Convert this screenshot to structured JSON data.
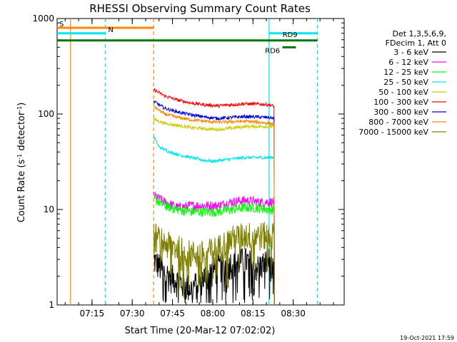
{
  "chart_data": {
    "type": "line",
    "title": "RHESSI Observing Summary Count Rates",
    "xlabel": "Start Time (20-Mar-12 07:02:02)",
    "ylabel_main": "Count Rate (s",
    "ylabel_sup1": "-1",
    "ylabel_mid": " detector",
    "ylabel_sup2": "-1",
    "ylabel_end": ")",
    "yscale": "log",
    "ylim": [
      1,
      1000
    ],
    "xlim_minutes": [
      0,
      107
    ],
    "x_ticks": [
      "07:15",
      "07:30",
      "07:45",
      "08:00",
      "08:15",
      "08:30"
    ],
    "x_tick_minutes": [
      13,
      28,
      43,
      58,
      73,
      88
    ],
    "y_ticks": [
      "1",
      "10",
      "100",
      "1000"
    ],
    "y_tick_values": [
      1,
      10,
      100,
      1000
    ],
    "legend_header": [
      "Det 1,3,5,6,9,",
      "FDecim 1, Att 0"
    ],
    "legend_position": "right",
    "footer_date": "19-Oct-2021 17:59",
    "series": [
      {
        "name": "3 - 6 keV",
        "color": "#000000",
        "start": 36,
        "end": 81,
        "points": [
          [
            36,
            3.0
          ],
          [
            40,
            2.2
          ],
          [
            45,
            1.8
          ],
          [
            50,
            1.5
          ],
          [
            55,
            2.0
          ],
          [
            60,
            2.5
          ],
          [
            65,
            2.8
          ],
          [
            70,
            3.0
          ],
          [
            75,
            2.5
          ],
          [
            79,
            3.0
          ],
          [
            81,
            2.0
          ]
        ]
      },
      {
        "name": "6 - 12 keV",
        "color": "#ff00ff",
        "start": 36,
        "end": 81,
        "points": [
          [
            36,
            14
          ],
          [
            40,
            12
          ],
          [
            45,
            10.5
          ],
          [
            50,
            11
          ],
          [
            55,
            11
          ],
          [
            60,
            11
          ],
          [
            65,
            12
          ],
          [
            70,
            12.5
          ],
          [
            75,
            12
          ],
          [
            79,
            12
          ],
          [
            81,
            12
          ]
        ]
      },
      {
        "name": "12 - 25 keV",
        "color": "#00ff00",
        "start": 36,
        "end": 81,
        "points": [
          [
            36,
            13
          ],
          [
            40,
            11
          ],
          [
            45,
            10
          ],
          [
            50,
            9.5
          ],
          [
            55,
            9.5
          ],
          [
            60,
            9.5
          ],
          [
            65,
            10
          ],
          [
            70,
            10.5
          ],
          [
            75,
            10.5
          ],
          [
            79,
            10
          ],
          [
            81,
            10
          ]
        ]
      },
      {
        "name": "25 - 50 keV",
        "color": "#00e5ee",
        "start": 36,
        "end": 81,
        "points": [
          [
            36,
            58
          ],
          [
            38,
            45
          ],
          [
            42,
            40
          ],
          [
            46,
            37
          ],
          [
            50,
            35
          ],
          [
            54,
            33
          ],
          [
            58,
            32
          ],
          [
            62,
            33
          ],
          [
            66,
            34
          ],
          [
            70,
            35
          ],
          [
            75,
            35
          ],
          [
            79,
            35
          ],
          [
            81,
            35
          ]
        ]
      },
      {
        "name": "50 - 100 keV",
        "color": "#cccc00",
        "start": 36,
        "end": 81,
        "points": [
          [
            36,
            88
          ],
          [
            40,
            80
          ],
          [
            45,
            76
          ],
          [
            50,
            72
          ],
          [
            55,
            70
          ],
          [
            60,
            69
          ],
          [
            65,
            71
          ],
          [
            70,
            74
          ],
          [
            75,
            74
          ],
          [
            79,
            74
          ],
          [
            81,
            74
          ]
        ]
      },
      {
        "name": "100 - 300 keV",
        "color": "#ff0000",
        "start": 36,
        "end": 81,
        "points": [
          [
            36,
            180
          ],
          [
            40,
            155
          ],
          [
            45,
            140
          ],
          [
            50,
            130
          ],
          [
            55,
            125
          ],
          [
            60,
            122
          ],
          [
            65,
            125
          ],
          [
            70,
            128
          ],
          [
            75,
            127
          ],
          [
            79,
            125
          ],
          [
            81,
            120
          ]
        ]
      },
      {
        "name": "300 - 800 keV",
        "color": "#0000dd",
        "start": 36,
        "end": 81,
        "points": [
          [
            36,
            135
          ],
          [
            40,
            115
          ],
          [
            45,
            105
          ],
          [
            50,
            98
          ],
          [
            55,
            93
          ],
          [
            60,
            90
          ],
          [
            65,
            92
          ],
          [
            70,
            94
          ],
          [
            75,
            93
          ],
          [
            79,
            92
          ],
          [
            81,
            90
          ]
        ]
      },
      {
        "name": "800 - 7000 keV",
        "color": "#ff8800",
        "start": 36,
        "end": 81,
        "points": [
          [
            36,
            120
          ],
          [
            40,
            100
          ],
          [
            45,
            92
          ],
          [
            50,
            87
          ],
          [
            55,
            84
          ],
          [
            60,
            82
          ],
          [
            65,
            83
          ],
          [
            70,
            84
          ],
          [
            75,
            82
          ],
          [
            79,
            80
          ],
          [
            81,
            78
          ]
        ]
      },
      {
        "name": "7000 - 15000 keV",
        "color": "#808000",
        "start": 36,
        "end": 81,
        "points": [
          [
            36,
            5.5
          ],
          [
            40,
            4.5
          ],
          [
            45,
            4.0
          ],
          [
            50,
            3.5
          ],
          [
            55,
            3.5
          ],
          [
            60,
            4.0
          ],
          [
            65,
            5.0
          ],
          [
            70,
            5.5
          ],
          [
            75,
            5.5
          ],
          [
            79,
            5.5
          ],
          [
            81,
            5.5
          ]
        ]
      }
    ],
    "flags": [
      {
        "label": "S",
        "color": "#ff8800",
        "y": 800,
        "x_start": 0,
        "x_end": 36,
        "label_x": 0.8
      },
      {
        "label": "N",
        "color": "#00e5ee",
        "y": 700,
        "x_start": 0,
        "x_end": 18,
        "label_x": 19
      },
      {
        "label": "",
        "color": "#00e5ee",
        "y": 700,
        "x_start": 79,
        "x_end": 97
      },
      {
        "label": "",
        "color": "#007700",
        "y": 590,
        "x_start": 0,
        "x_end": 97
      },
      {
        "label": "RD6",
        "color": "#007700",
        "y": 500,
        "x_start": 84,
        "x_end": 89,
        "label_x": 77.5
      },
      {
        "label": "RD9",
        "color": "#007700",
        "y": 620,
        "x_start": 84,
        "x_end": 84,
        "label_x": 84
      }
    ],
    "vertical_lines": [
      {
        "x": 5,
        "color": "#ff8800",
        "style": "solid"
      },
      {
        "x": 18,
        "color": "#00e5ee",
        "style": "dashed"
      },
      {
        "x": 36,
        "color": "#ff8800",
        "style": "dashed"
      },
      {
        "x": 79,
        "color": "#00e5ee",
        "style": "solid"
      },
      {
        "x": 97,
        "color": "#00e5ee",
        "style": "dashed"
      }
    ]
  }
}
